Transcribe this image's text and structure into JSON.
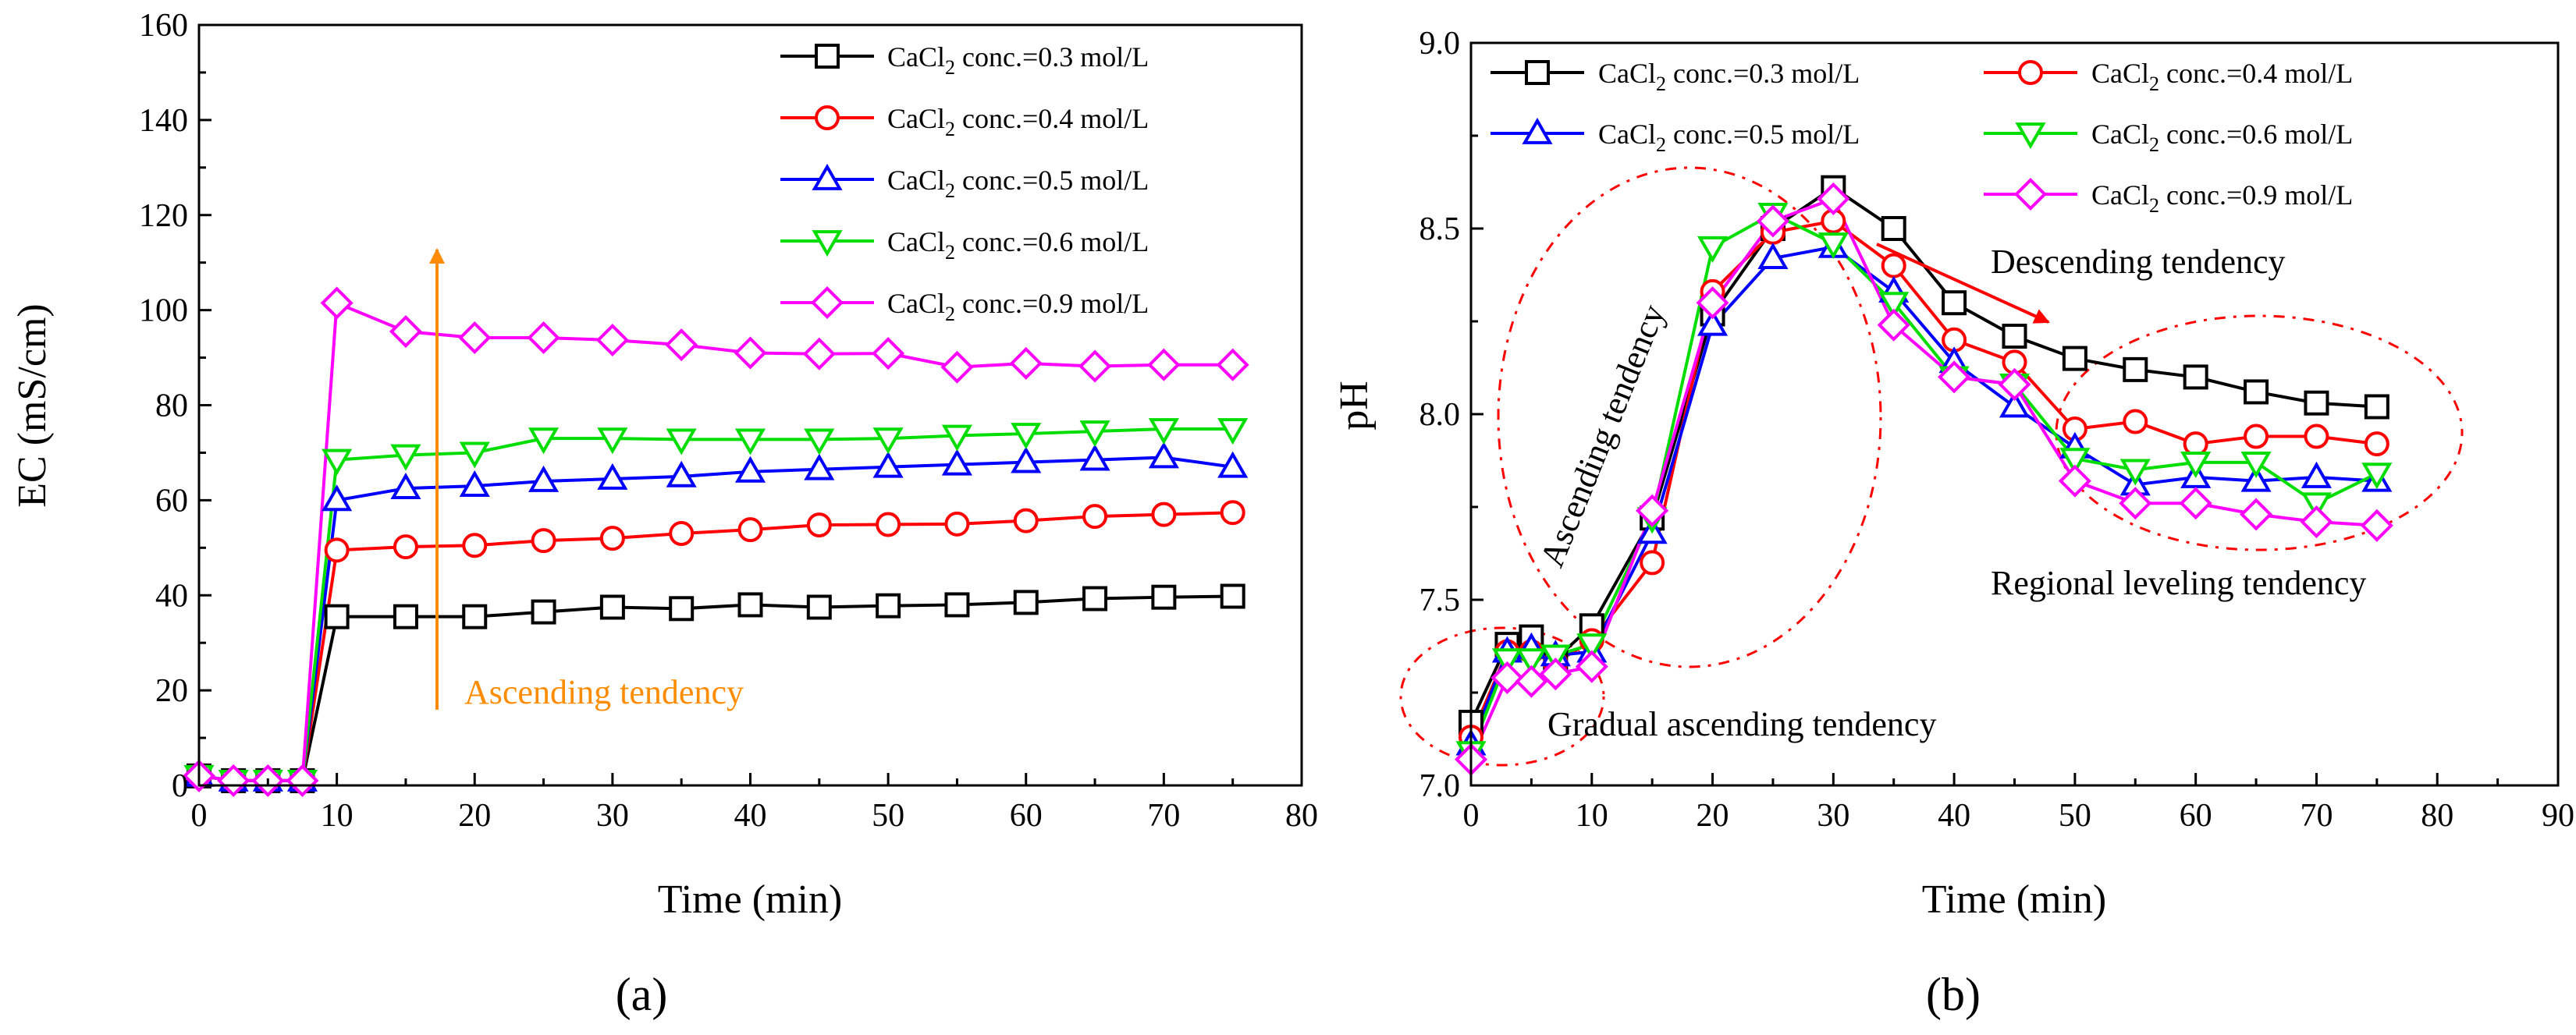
{
  "panels": {
    "a": "(a)",
    "b": "(b)"
  },
  "legend_prefix": "CaCl",
  "legend_subscript": "2",
  "legend_suffix": " conc.=",
  "chart_data": [
    {
      "type": "line",
      "panel": "a",
      "xlabel": "Time (min)",
      "ylabel": "EC (mS/cm)",
      "xlim": [
        0,
        80
      ],
      "ylim": [
        0,
        160
      ],
      "xticks": [
        0,
        10,
        20,
        30,
        40,
        50,
        60,
        70,
        80
      ],
      "yticks": [
        0,
        20,
        40,
        60,
        80,
        100,
        120,
        140,
        160
      ],
      "grid": false,
      "legend_placement": "top-right",
      "series": [
        {
          "name": "0.3 mol/L",
          "color": "#000000",
          "marker": "square",
          "x": [
            0,
            2.5,
            5,
            7.5,
            10,
            15,
            20,
            25,
            30,
            35,
            40,
            45,
            50,
            55,
            60,
            65,
            70,
            75
          ],
          "y": [
            2,
            1,
            1,
            1,
            35.5,
            35.5,
            35.5,
            36.5,
            37.5,
            37.2,
            38,
            37.5,
            37.8,
            38,
            38.5,
            39.3,
            39.6,
            39.8
          ]
        },
        {
          "name": "0.4 mol/L",
          "color": "#ff0000",
          "marker": "circle",
          "x": [
            0,
            2.5,
            5,
            7.5,
            10,
            15,
            20,
            25,
            30,
            35,
            40,
            45,
            50,
            55,
            60,
            65,
            70,
            75
          ],
          "y": [
            2,
            1,
            1,
            1,
            49.5,
            50.2,
            50.5,
            51.5,
            52,
            53,
            53.8,
            54.8,
            54.9,
            55,
            55.7,
            56.6,
            57,
            57.4
          ]
        },
        {
          "name": "0.5 mol/L",
          "color": "#0000ff",
          "marker": "triangle-up",
          "x": [
            0,
            2.5,
            5,
            7.5,
            10,
            15,
            20,
            25,
            30,
            35,
            40,
            45,
            50,
            55,
            60,
            65,
            70,
            75
          ],
          "y": [
            2,
            1,
            1,
            1,
            60,
            62.5,
            63,
            64,
            64.5,
            65,
            66,
            66.5,
            67,
            67.5,
            68,
            68.5,
            69,
            67
          ]
        },
        {
          "name": "0.6 mol/L",
          "color": "#00dd00",
          "marker": "triangle-down",
          "x": [
            0,
            2.5,
            5,
            7.5,
            10,
            15,
            20,
            25,
            30,
            35,
            40,
            45,
            50,
            55,
            60,
            65,
            70,
            75
          ],
          "y": [
            2,
            1,
            1,
            1,
            68.5,
            69.5,
            70,
            73,
            73,
            72.8,
            72.8,
            72.8,
            73,
            73.6,
            74,
            74.5,
            75,
            75
          ]
        },
        {
          "name": "0.9 mol/L",
          "color": "#ff00ff",
          "marker": "diamond",
          "x": [
            0,
            2.5,
            5,
            7.5,
            10,
            15,
            20,
            25,
            30,
            35,
            40,
            45,
            50,
            55,
            60,
            65,
            70,
            75
          ],
          "y": [
            2,
            1,
            1,
            1,
            101.5,
            95.5,
            94.2,
            94.2,
            93.7,
            92.7,
            91,
            90.8,
            90.9,
            88,
            88.8,
            88.2,
            88.5,
            88.5
          ]
        }
      ],
      "annotations": [
        {
          "text": "Ascending tendency",
          "color": "#ff8c00"
        }
      ]
    },
    {
      "type": "line",
      "panel": "b",
      "xlabel": "Time (min)",
      "ylabel": "pH",
      "xlim": [
        0,
        90
      ],
      "ylim": [
        7.0,
        9.0
      ],
      "xticks": [
        0,
        10,
        20,
        30,
        40,
        50,
        60,
        70,
        80,
        90
      ],
      "yticks": [
        7.0,
        7.5,
        8.0,
        8.5,
        9.0
      ],
      "ytick_labels": [
        "7.0",
        "7.5",
        "8.0",
        "8.5",
        "9.0"
      ],
      "grid": false,
      "legend_placement": "top",
      "series": [
        {
          "name": "0.3 mol/L",
          "color": "#000000",
          "marker": "square",
          "x": [
            0,
            3,
            5,
            7,
            10,
            15,
            20,
            25,
            30,
            35,
            40,
            45,
            50,
            55,
            60,
            65,
            70,
            75
          ],
          "y": [
            7.17,
            7.38,
            7.4,
            7.34,
            7.43,
            7.72,
            8.27,
            8.5,
            8.61,
            8.5,
            8.3,
            8.21,
            8.15,
            8.12,
            8.1,
            8.06,
            8.03,
            8.02
          ]
        },
        {
          "name": "0.4 mol/L",
          "color": "#ff0000",
          "marker": "circle",
          "x": [
            0,
            3,
            5,
            7,
            10,
            15,
            20,
            25,
            30,
            35,
            40,
            45,
            50,
            55,
            60,
            65,
            70,
            75
          ],
          "y": [
            7.13,
            7.36,
            7.36,
            7.33,
            7.39,
            7.6,
            8.33,
            8.49,
            8.52,
            8.4,
            8.2,
            8.14,
            7.96,
            7.98,
            7.92,
            7.94,
            7.94,
            7.92
          ]
        },
        {
          "name": "0.5 mol/L",
          "color": "#0000ff",
          "marker": "triangle-up",
          "x": [
            0,
            3,
            5,
            7,
            10,
            15,
            20,
            25,
            30,
            35,
            40,
            45,
            50,
            55,
            60,
            65,
            70,
            75
          ],
          "y": [
            7.11,
            7.36,
            7.37,
            7.35,
            7.36,
            7.68,
            8.24,
            8.42,
            8.45,
            8.33,
            8.14,
            8.02,
            7.91,
            7.81,
            7.83,
            7.82,
            7.83,
            7.82
          ]
        },
        {
          "name": "0.6 mol/L",
          "color": "#00dd00",
          "marker": "triangle-down",
          "x": [
            0,
            3,
            5,
            7,
            10,
            15,
            20,
            25,
            30,
            35,
            40,
            45,
            50,
            55,
            60,
            65,
            70,
            75
          ],
          "y": [
            7.09,
            7.34,
            7.34,
            7.35,
            7.38,
            7.72,
            8.45,
            8.54,
            8.46,
            8.3,
            8.1,
            8.08,
            7.88,
            7.85,
            7.87,
            7.87,
            7.76,
            7.84
          ]
        },
        {
          "name": "0.9 mol/L",
          "color": "#ff00ff",
          "marker": "diamond",
          "x": [
            0,
            3,
            5,
            7,
            10,
            15,
            20,
            25,
            30,
            35,
            40,
            45,
            50,
            55,
            60,
            65,
            70,
            75
          ],
          "y": [
            7.07,
            7.29,
            7.28,
            7.3,
            7.32,
            7.74,
            8.3,
            8.52,
            8.58,
            8.24,
            8.1,
            8.08,
            7.82,
            7.76,
            7.76,
            7.73,
            7.71,
            7.7
          ]
        }
      ],
      "annotations": [
        {
          "text": "Ascending tendency",
          "color": "#000000"
        },
        {
          "text": "Descending tendency",
          "color": "#000000"
        },
        {
          "text": "Regional leveling tendency",
          "color": "#000000"
        },
        {
          "text": "Gradual ascending tendency",
          "color": "#000000"
        }
      ]
    }
  ]
}
